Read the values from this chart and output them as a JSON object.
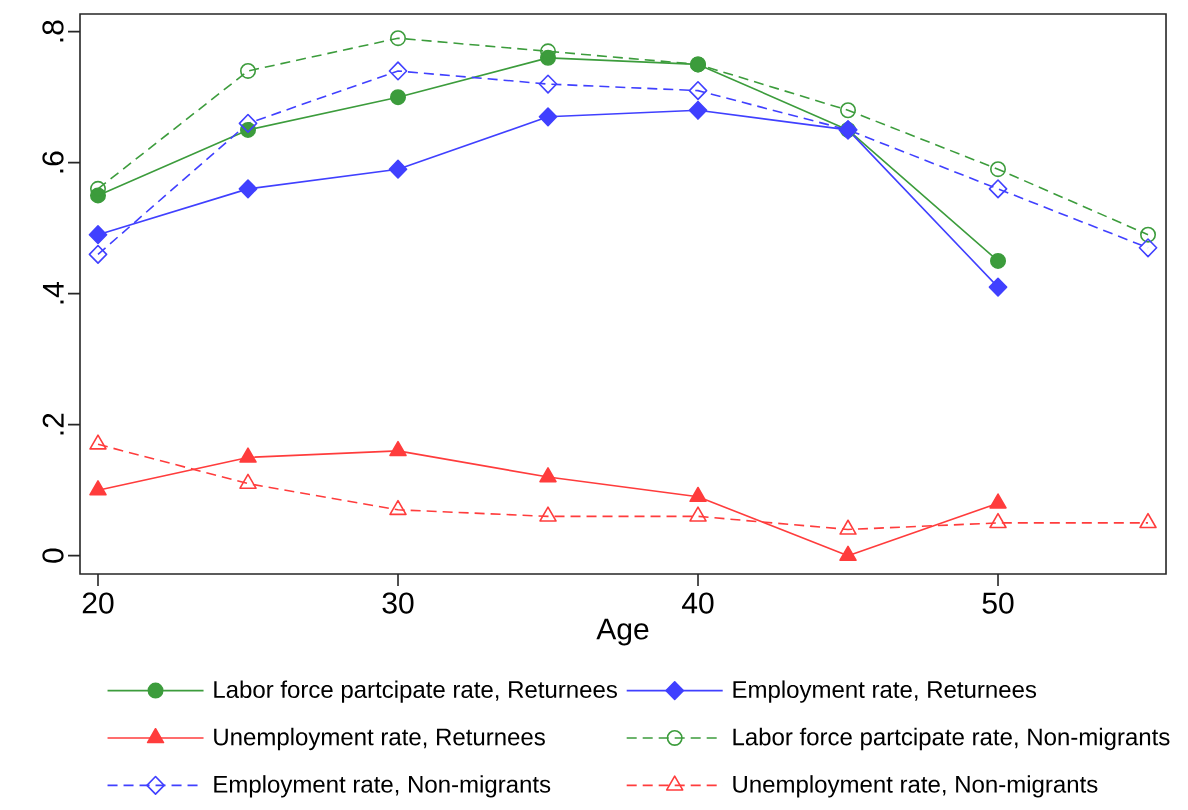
{
  "chart_data": {
    "type": "line",
    "xlabel": "Age",
    "x": [
      20,
      25,
      30,
      35,
      40,
      45,
      50,
      55
    ],
    "xlim": [
      19.4,
      55.6
    ],
    "xticks": [
      20,
      30,
      40,
      50
    ],
    "ylim": [
      -0.028,
      0.827
    ],
    "yticks": [
      0,
      {
        "value": 0.2,
        "label": ".2"
      },
      {
        "value": 0.4,
        "label": ".4"
      },
      {
        "value": 0.6,
        "label": ".6"
      },
      {
        "value": 0.8,
        "label": ".8"
      }
    ],
    "legend": "bottom",
    "series": [
      {
        "name": "Labor force partcipate rate, Returnees",
        "color": "#3c9c3c",
        "marker": "circle",
        "line_style": "solid",
        "values": [
          0.55,
          0.65,
          0.7,
          0.76,
          0.75,
          0.65,
          0.45,
          null
        ]
      },
      {
        "name": "Employment rate, Returnees",
        "color": "#4040ff",
        "marker": "diamond",
        "line_style": "solid",
        "values": [
          0.49,
          0.56,
          0.59,
          0.67,
          0.68,
          0.65,
          0.41,
          null
        ]
      },
      {
        "name": "Unemployment rate, Returnees",
        "color": "#ff3c3c",
        "marker": "triangle",
        "line_style": "solid",
        "values": [
          0.1,
          0.15,
          0.16,
          0.12,
          0.09,
          0.0,
          0.08,
          null
        ]
      },
      {
        "name": "Labor force partcipate rate, Non-migrants",
        "color": "#3c9c3c",
        "marker": "circle",
        "line_style": "dashed",
        "values": [
          0.56,
          0.74,
          0.79,
          0.77,
          0.75,
          0.68,
          0.59,
          0.49
        ]
      },
      {
        "name": "Employment rate, Non-migrants",
        "color": "#4040ff",
        "marker": "diamond",
        "line_style": "dashed",
        "values": [
          0.46,
          0.66,
          0.74,
          0.72,
          0.71,
          0.65,
          0.56,
          0.47
        ]
      },
      {
        "name": "Unemployment rate, Non-migrants",
        "color": "#ff3c3c",
        "marker": "triangle",
        "line_style": "dashed",
        "values": [
          0.17,
          0.11,
          0.07,
          0.06,
          0.06,
          0.04,
          0.05,
          0.05
        ]
      }
    ]
  }
}
